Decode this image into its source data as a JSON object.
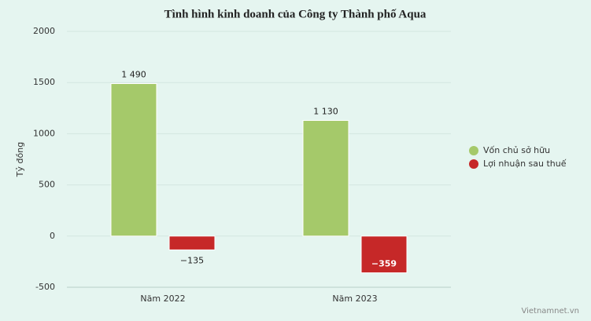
{
  "chart_data": {
    "type": "bar",
    "title": "Tình hình kinh doanh của Công ty Thành phố Aqua",
    "y_label": "Tỷ đồng",
    "credit": "Vietnamnet.vn",
    "categories": [
      "Năm 2022",
      "Năm 2023"
    ],
    "series": [
      {
        "name": "Vốn chủ sở hữu",
        "color": "#a5c96a",
        "values": [
          1490,
          1130
        ],
        "value_labels": [
          "1 490",
          "1 130"
        ]
      },
      {
        "name": "Lợi nhuận sau thuế",
        "color": "#c62828",
        "values": [
          -135,
          -359
        ],
        "value_labels": [
          "−135",
          "−359"
        ]
      }
    ],
    "ylim": [
      -500,
      2000
    ],
    "yticks": [
      -500,
      0,
      500,
      1000,
      1500,
      2000
    ],
    "grid": true,
    "legend": "right"
  }
}
